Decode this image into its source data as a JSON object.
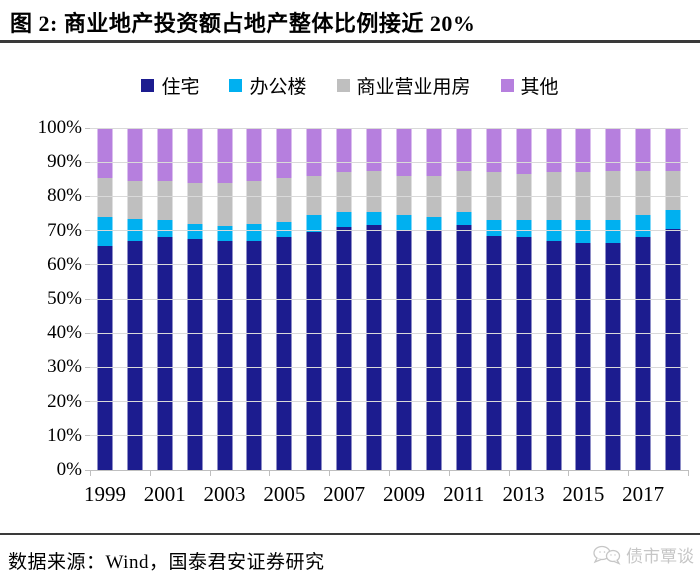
{
  "header": {
    "title": "图 2:  商业地产投资额占地产整体比例接近 20%"
  },
  "footer": {
    "source": "数据来源：Wind，国泰君安证券研究",
    "watermark": "债市覃谈"
  },
  "colors": {
    "gridline": "#d9d9d9",
    "axis": "#bfbfbf",
    "rule": "#3a3a3a",
    "watermark": "#c6c6c6"
  },
  "chart_data": {
    "type": "bar",
    "stacked": true,
    "stacked_total": 100,
    "title": "商业地产投资额占地产整体比例接近 20%",
    "xlabel": "",
    "ylabel": "",
    "ylim": [
      0,
      100
    ],
    "grid": true,
    "legend_position": "top",
    "x": [
      1999,
      2000,
      2001,
      2002,
      2003,
      2004,
      2005,
      2006,
      2007,
      2008,
      2009,
      2010,
      2011,
      2012,
      2013,
      2014,
      2015,
      2016,
      2017,
      2018
    ],
    "xticks": [
      "1999",
      "2001",
      "2003",
      "2005",
      "2007",
      "2009",
      "2011",
      "2013",
      "2015",
      "2017"
    ],
    "yticks": [
      "0%",
      "10%",
      "20%",
      "30%",
      "40%",
      "50%",
      "60%",
      "70%",
      "80%",
      "90%",
      "100%"
    ],
    "series": [
      {
        "key": "residential",
        "name": "住宅",
        "color": "#1c1c8f",
        "values": [
          65.5,
          67,
          68,
          67.5,
          67,
          67,
          68,
          69.5,
          71,
          71.5,
          70,
          70,
          71.5,
          68.5,
          68,
          67,
          66.5,
          66.5,
          68,
          70.5
        ]
      },
      {
        "key": "office-building",
        "name": "办公楼",
        "color": "#00b0f0",
        "values": [
          8.5,
          6.5,
          5,
          4.5,
          4.5,
          5,
          4.5,
          5,
          4.5,
          4,
          4.5,
          4,
          4,
          4.5,
          5,
          6,
          6.5,
          6.5,
          6.5,
          5.5
        ]
      },
      {
        "key": "commercial-business-housing",
        "name": "商业营业用房",
        "color": "#bfbfbf",
        "values": [
          11.5,
          11,
          11.5,
          12,
          12.5,
          12.5,
          13,
          11.5,
          11.5,
          12,
          11.5,
          12,
          12,
          14,
          13.5,
          14,
          14,
          14.5,
          13,
          11.5
        ]
      },
      {
        "key": "other",
        "name": "其他",
        "color": "#b67fde",
        "values": [
          14.5,
          15.5,
          15.5,
          16,
          16,
          15.5,
          14.5,
          14,
          13,
          12.5,
          14,
          14,
          12.5,
          13,
          13.5,
          13,
          13,
          12.5,
          12.5,
          12.5
        ]
      }
    ]
  }
}
